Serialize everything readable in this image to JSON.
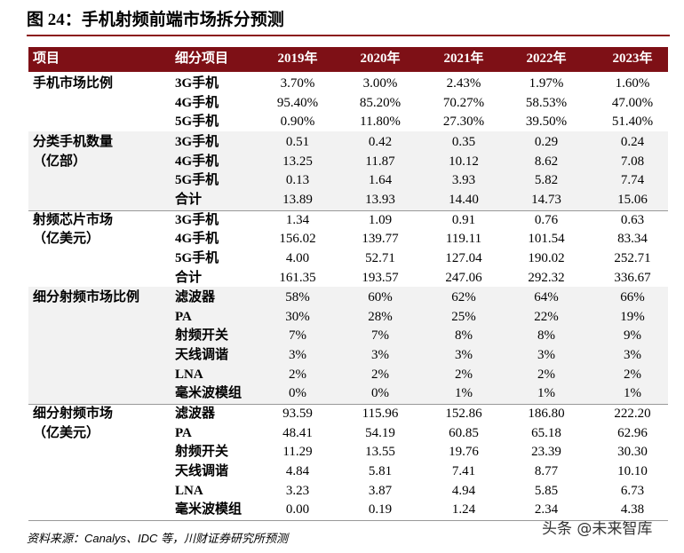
{
  "title": "图 24：手机射频前端市场拆分预测",
  "table": {
    "header": [
      "项目",
      "细分项目",
      "2019年",
      "2020年",
      "2021年",
      "2022年",
      "2023年"
    ],
    "groups": [
      {
        "label": [
          "手机市场比例"
        ],
        "rows": [
          [
            "3G手机",
            "3.70%",
            "3.00%",
            "2.43%",
            "1.97%",
            "1.60%"
          ],
          [
            "4G手机",
            "95.40%",
            "85.20%",
            "70.27%",
            "58.53%",
            "47.00%"
          ],
          [
            "5G手机",
            "0.90%",
            "11.80%",
            "27.30%",
            "39.50%",
            "51.40%"
          ]
        ]
      },
      {
        "label": [
          "分类手机数量",
          "（亿部）"
        ],
        "rows": [
          [
            "3G手机",
            "0.51",
            "0.42",
            "0.35",
            "0.29",
            "0.24"
          ],
          [
            "4G手机",
            "13.25",
            "11.87",
            "10.12",
            "8.62",
            "7.08"
          ],
          [
            "5G手机",
            "0.13",
            "1.64",
            "3.93",
            "5.82",
            "7.74"
          ],
          [
            "合计",
            "13.89",
            "13.93",
            "14.40",
            "14.73",
            "15.06"
          ]
        ]
      },
      {
        "label": [
          "射频芯片市场",
          "（亿美元）"
        ],
        "rows": [
          [
            "3G手机",
            "1.34",
            "1.09",
            "0.91",
            "0.76",
            "0.63"
          ],
          [
            "4G手机",
            "156.02",
            "139.77",
            "119.11",
            "101.54",
            "83.34"
          ],
          [
            "5G手机",
            "4.00",
            "52.71",
            "127.04",
            "190.02",
            "252.71"
          ],
          [
            "合计",
            "161.35",
            "193.57",
            "247.06",
            "292.32",
            "336.67"
          ]
        ]
      },
      {
        "label": [
          "细分射频市场比例"
        ],
        "rows": [
          [
            "滤波器",
            "58%",
            "60%",
            "62%",
            "64%",
            "66%"
          ],
          [
            "PA",
            "30%",
            "28%",
            "25%",
            "22%",
            "19%"
          ],
          [
            "射频开关",
            "7%",
            "7%",
            "8%",
            "8%",
            "9%"
          ],
          [
            "天线调谐",
            "3%",
            "3%",
            "3%",
            "3%",
            "3%"
          ],
          [
            "LNA",
            "2%",
            "2%",
            "2%",
            "2%",
            "2%"
          ],
          [
            "毫米波模组",
            "0%",
            "0%",
            "1%",
            "1%",
            "1%"
          ]
        ]
      },
      {
        "label": [
          "细分射频市场",
          "（亿美元）"
        ],
        "rows": [
          [
            "滤波器",
            "93.59",
            "115.96",
            "152.86",
            "186.80",
            "222.20"
          ],
          [
            "PA",
            "48.41",
            "54.19",
            "60.85",
            "65.18",
            "62.96"
          ],
          [
            "射频开关",
            "11.29",
            "13.55",
            "19.76",
            "23.39",
            "30.30"
          ],
          [
            "天线调谐",
            "4.84",
            "5.81",
            "7.41",
            "8.77",
            "10.10"
          ],
          [
            "LNA",
            "3.23",
            "3.87",
            "4.94",
            "5.85",
            "6.73"
          ],
          [
            "毫米波模组",
            "0.00",
            "0.19",
            "1.24",
            "2.34",
            "4.38"
          ]
        ]
      }
    ]
  },
  "source": "资料来源：Canalys、IDC 等，川财证券研究所预测",
  "watermark": "头条 @未来智库"
}
